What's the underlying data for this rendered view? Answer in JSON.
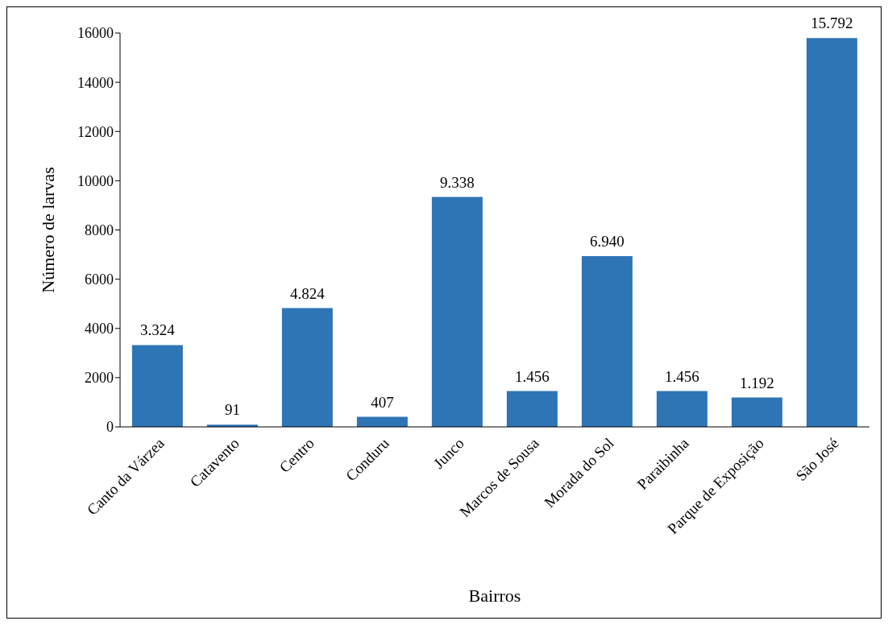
{
  "chart_data": {
    "type": "bar",
    "xlabel": "Bairros",
    "ylabel": "Número de larvas",
    "categories": [
      "Canto da Várzea",
      "Catavento",
      "Centro",
      "Conduru",
      "Junco",
      "Marcos de Sousa",
      "Morada do Sol",
      "Paraibinha",
      "Parque de Exposição",
      "São José"
    ],
    "values": [
      3324,
      91,
      4824,
      407,
      9338,
      1456,
      6940,
      1456,
      1192,
      15792
    ],
    "value_labels": [
      "3.324",
      "91",
      "4.824",
      "407",
      "9.338",
      "1.456",
      "6.940",
      "1.456",
      "1.192",
      "15.792"
    ],
    "color": "#2e75b6",
    "ylim": [
      0,
      16000
    ],
    "yticks": [
      0,
      2000,
      4000,
      6000,
      8000,
      10000,
      12000,
      14000,
      16000
    ]
  }
}
